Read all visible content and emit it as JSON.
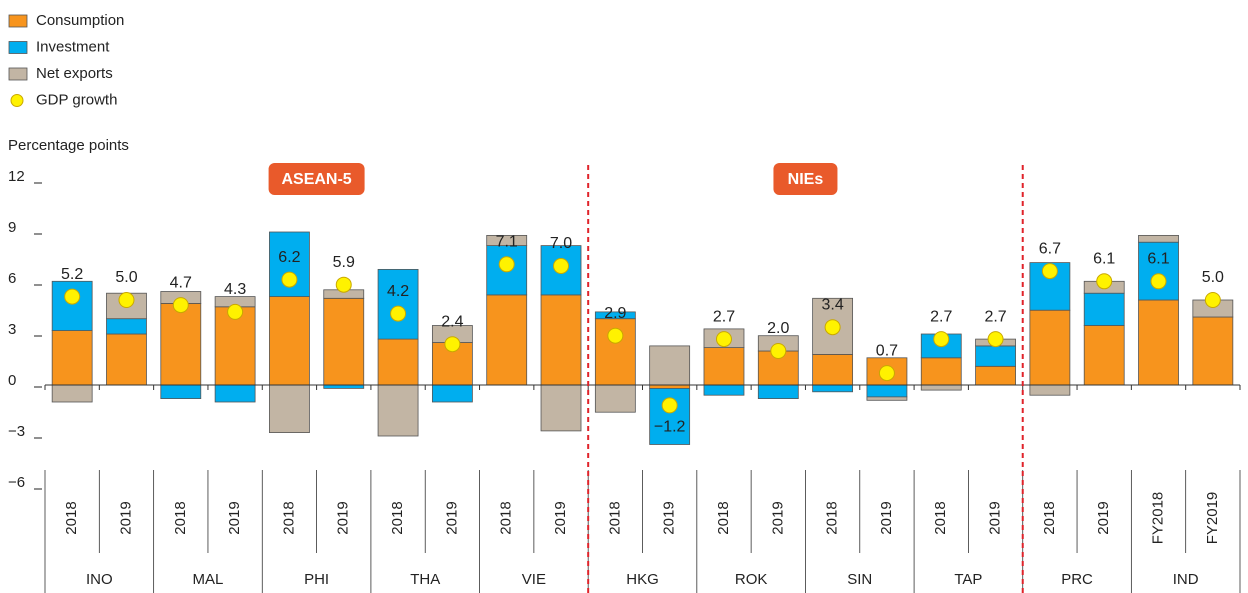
{
  "chart_data": {
    "type": "stacked-bar",
    "y_label": "Percentage points",
    "categories": [
      "2018",
      "2019",
      "2018",
      "2019",
      "2018",
      "2019",
      "2018",
      "2019",
      "2018",
      "2019",
      "2018",
      "2019",
      "2018",
      "2019",
      "2018",
      "2019",
      "2018",
      "2019",
      "2018",
      "2019",
      "FY2018",
      "FY2019"
    ],
    "groups": [
      "INO",
      "MAL",
      "PHI",
      "THA",
      "VIE",
      "HKG",
      "ROK",
      "SIN",
      "TAP",
      "PRC",
      "IND"
    ],
    "annotations": [
      "ASEAN-5",
      "NIEs"
    ],
    "series": [
      {
        "name": "Consumption",
        "color": "#f7941d",
        "values": [
          3.2,
          3.0,
          4.8,
          4.6,
          5.2,
          5.1,
          2.7,
          2.5,
          5.3,
          5.3,
          3.9,
          -0.2,
          2.2,
          2.0,
          1.8,
          1.6,
          1.6,
          1.1,
          4.4,
          3.5,
          5.0,
          4.0
        ]
      },
      {
        "name": "Investment",
        "color": "#00aeef",
        "values": [
          2.9,
          0.9,
          -0.8,
          -1.0,
          3.8,
          -0.2,
          4.1,
          -1.0,
          2.9,
          2.9,
          0.4,
          -3.3,
          -0.6,
          -0.8,
          -0.4,
          -0.7,
          1.4,
          1.2,
          2.8,
          1.9,
          3.4,
          0
        ]
      },
      {
        "name": "Net exports",
        "color": "#c2b5a4",
        "values": [
          -1.0,
          1.5,
          0.7,
          0.6,
          -2.8,
          0.5,
          -3.0,
          1.0,
          0.6,
          -2.7,
          -1.6,
          2.3,
          1.1,
          0.9,
          3.3,
          -0.2,
          -0.3,
          0.4,
          -0.6,
          0.7,
          0.4,
          1.0
        ]
      },
      {
        "name": "GDP growth",
        "type": "dot",
        "color": "#fff200",
        "values": [
          5.2,
          5.0,
          4.7,
          4.3,
          6.2,
          5.9,
          4.2,
          2.4,
          7.1,
          7.0,
          2.9,
          -1.2,
          2.7,
          2.0,
          3.4,
          0.7,
          2.7,
          2.7,
          6.7,
          6.1,
          6.1,
          5.0
        ],
        "value_labels": [
          "5.2",
          "5.0",
          "4.7",
          "4.3",
          "6.2",
          "5.9",
          "4.2",
          "2.4",
          "7.1",
          "7.0",
          "2.9",
          "−1.2",
          "2.7",
          "2.0",
          "3.4",
          "0.7",
          "2.7",
          "2.7",
          "6.7",
          "6.1",
          "6.1",
          "5.0"
        ]
      }
    ],
    "ylim": [
      -6,
      12
    ],
    "yticks": [
      12,
      9,
      6,
      3,
      0,
      {
        "value": -3,
        "label": "−3"
      },
      {
        "value": -6,
        "label": "−6"
      }
    ]
  }
}
